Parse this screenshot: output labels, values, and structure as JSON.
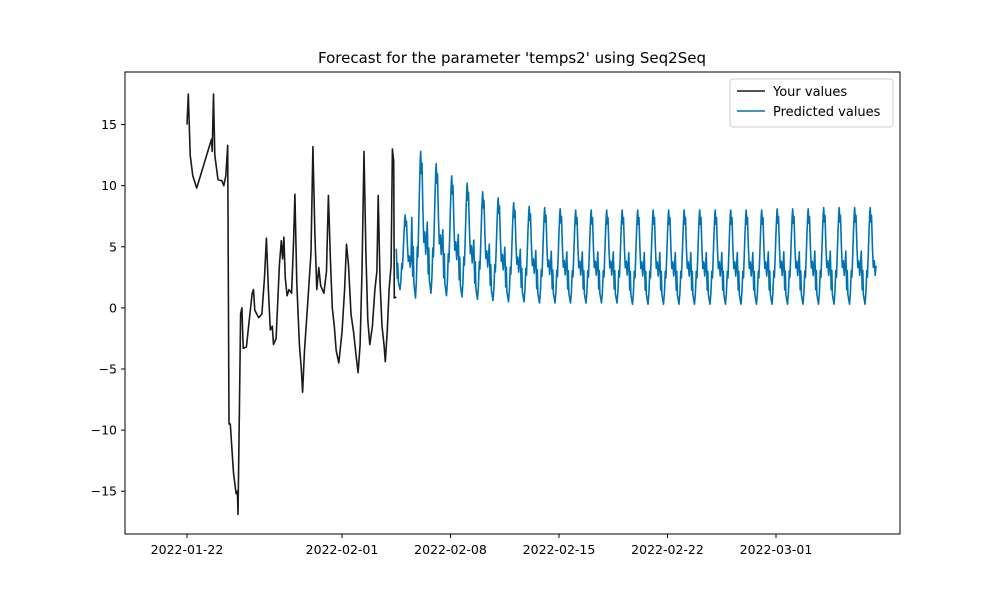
{
  "chart_data": {
    "type": "line",
    "title": "Forecast for the parameter 'temps2' using Seq2Seq",
    "xlabel": "",
    "ylabel": "",
    "xlim": [
      "2022-01-18",
      "2022-03-09"
    ],
    "ylim": [
      -18.5,
      19.3
    ],
    "x_ticks": [
      "2022-01-22",
      "2022-02-01",
      "2022-02-08",
      "2022-02-15",
      "2022-02-22",
      "2022-03-01"
    ],
    "y_ticks": [
      15,
      10,
      5,
      0,
      -5,
      -10,
      -15
    ],
    "y_tick_labels": [
      "15",
      "10",
      "5",
      "0",
      "−5",
      "−10",
      "−15"
    ],
    "grid": false,
    "legend_position": "top-right",
    "series": [
      {
        "name": "Your values",
        "color": "#1a1a1a",
        "points": [
          [
            "2022-01-22 00:00",
            15.0
          ],
          [
            "2022-01-22 02:00",
            17.5
          ],
          [
            "2022-01-22 05:00",
            12.5
          ],
          [
            "2022-01-22 09:00",
            10.8
          ],
          [
            "2022-01-22 15:00",
            9.8
          ],
          [
            "2022-01-23 14:00",
            13.8
          ],
          [
            "2022-01-23 15:00",
            12.8
          ],
          [
            "2022-01-23 17:00",
            17.5
          ],
          [
            "2022-01-23 19:00",
            12.5
          ],
          [
            "2022-01-24 00:00",
            10.5
          ],
          [
            "2022-01-24 06:00",
            10.4
          ],
          [
            "2022-01-24 09:00",
            10.0
          ],
          [
            "2022-01-24 12:00",
            10.8
          ],
          [
            "2022-01-24 15:00",
            13.3
          ],
          [
            "2022-01-24 17:00",
            -9.5
          ],
          [
            "2022-01-24 19:00",
            -9.5
          ],
          [
            "2022-01-25 00:00",
            -13.5
          ],
          [
            "2022-01-25 04:00",
            -15.2
          ],
          [
            "2022-01-25 06:00",
            -15.0
          ],
          [
            "2022-01-25 07:00",
            -16.9
          ],
          [
            "2022-01-25 09:00",
            -9.0
          ],
          [
            "2022-01-25 11:00",
            -0.5
          ],
          [
            "2022-01-25 13:00",
            0.0
          ],
          [
            "2022-01-25 15:00",
            -3.3
          ],
          [
            "2022-01-25 20:00",
            -3.2
          ],
          [
            "2022-01-26 00:00",
            -1.2
          ],
          [
            "2022-01-26 05:00",
            1.2
          ],
          [
            "2022-01-26 07:00",
            1.5
          ],
          [
            "2022-01-26 09:00",
            -0.2
          ],
          [
            "2022-01-26 15:00",
            -0.8
          ],
          [
            "2022-01-26 20:00",
            -0.5
          ],
          [
            "2022-01-27 00:00",
            2.5
          ],
          [
            "2022-01-27 03:00",
            5.7
          ],
          [
            "2022-01-27 06:00",
            1.5
          ],
          [
            "2022-01-27 09:00",
            -1.8
          ],
          [
            "2022-01-27 12:00",
            -1.5
          ],
          [
            "2022-01-27 14:00",
            -3.0
          ],
          [
            "2022-01-27 18:00",
            -2.5
          ],
          [
            "2022-01-27 23:00",
            3.5
          ],
          [
            "2022-01-28 02:00",
            5.5
          ],
          [
            "2022-01-28 04:00",
            4.0
          ],
          [
            "2022-01-28 06:00",
            5.8
          ],
          [
            "2022-01-28 08:00",
            2.5
          ],
          [
            "2022-01-28 11:00",
            1.0
          ],
          [
            "2022-01-28 14:00",
            1.5
          ],
          [
            "2022-01-28 18:00",
            1.2
          ],
          [
            "2022-01-28 21:00",
            5.5
          ],
          [
            "2022-01-28 23:00",
            9.3
          ],
          [
            "2022-01-29 02:00",
            2.0
          ],
          [
            "2022-01-29 06:00",
            -3.0
          ],
          [
            "2022-01-29 09:00",
            -5.0
          ],
          [
            "2022-01-29 11:00",
            -6.9
          ],
          [
            "2022-01-29 14:00",
            -3.5
          ],
          [
            "2022-01-29 19:00",
            0.5
          ],
          [
            "2022-01-30 00:00",
            4.5
          ],
          [
            "2022-01-30 03:00",
            13.2
          ],
          [
            "2022-01-30 06:00",
            6.0
          ],
          [
            "2022-01-30 09:00",
            1.5
          ],
          [
            "2022-01-30 12:00",
            3.3
          ],
          [
            "2022-01-30 15:00",
            1.8
          ],
          [
            "2022-01-30 20:00",
            1.2
          ],
          [
            "2022-01-31 00:00",
            3.0
          ],
          [
            "2022-01-31 03:00",
            9.2
          ],
          [
            "2022-01-31 06:00",
            4.0
          ],
          [
            "2022-01-31 09:00",
            0.0
          ],
          [
            "2022-01-31 12:00",
            -1.5
          ],
          [
            "2022-01-31 15:00",
            -3.5
          ],
          [
            "2022-01-31 19:00",
            -4.5
          ],
          [
            "2022-02-01 00:00",
            -2.0
          ],
          [
            "2022-02-01 04:00",
            1.5
          ],
          [
            "2022-02-01 07:00",
            5.2
          ],
          [
            "2022-02-01 10:00",
            3.5
          ],
          [
            "2022-02-01 14:00",
            -0.5
          ],
          [
            "2022-02-01 18:00",
            -2.0
          ],
          [
            "2022-02-01 22:00",
            -4.0
          ],
          [
            "2022-02-02 01:00",
            -5.3
          ],
          [
            "2022-02-02 04:00",
            -3.0
          ],
          [
            "2022-02-02 07:00",
            3.0
          ],
          [
            "2022-02-02 10:00",
            12.8
          ],
          [
            "2022-02-02 13:00",
            4.5
          ],
          [
            "2022-02-02 16:00",
            -1.0
          ],
          [
            "2022-02-02 19:00",
            -3.0
          ],
          [
            "2022-02-02 23:00",
            -1.5
          ],
          [
            "2022-02-03 03:00",
            1.5
          ],
          [
            "2022-02-03 06:00",
            3.0
          ],
          [
            "2022-02-03 08:00",
            9.2
          ],
          [
            "2022-02-03 11:00",
            2.0
          ],
          [
            "2022-02-03 14:00",
            -1.5
          ],
          [
            "2022-02-03 17:00",
            -3.0
          ],
          [
            "2022-02-03 19:00",
            -4.4
          ],
          [
            "2022-02-03 22:00",
            -2.0
          ],
          [
            "2022-02-04 01:00",
            1.5
          ],
          [
            "2022-02-04 04:00",
            3.5
          ],
          [
            "2022-02-04 06:00",
            13.0
          ],
          [
            "2022-02-04 08:00",
            12.0
          ],
          [
            "2022-02-04 09:00",
            0.8
          ],
          [
            "2022-02-04 12:00",
            0.9
          ]
        ]
      },
      {
        "name": "Predicted values",
        "color": "#0072b2",
        "start": "2022-02-04 12:00",
        "end": "2022-03-07 12:00",
        "period_days": 1,
        "peak_values": [
          7.6,
          12.8,
          11.8,
          10.8,
          10.2,
          9.5,
          9.0,
          8.6,
          8.3,
          8.2,
          8.1,
          8.0,
          8.0,
          8.0,
          8.0,
          8.0,
          8.0,
          8.0,
          8.0,
          8.0,
          8.0,
          8.0,
          8.0,
          8.0,
          8.1,
          8.1,
          8.1,
          8.2,
          8.2,
          8.2,
          8.2
        ],
        "trough_values": [
          1.5,
          0.8,
          1.2,
          1.0,
          0.9,
          0.7,
          0.6,
          0.5,
          0.5,
          0.4,
          0.4,
          0.4,
          0.4,
          0.4,
          0.4,
          0.3,
          0.3,
          0.3,
          0.3,
          0.3,
          0.3,
          0.3,
          0.3,
          0.3,
          0.3,
          0.3,
          0.3,
          0.3,
          0.3,
          0.3,
          0.3
        ]
      }
    ]
  }
}
